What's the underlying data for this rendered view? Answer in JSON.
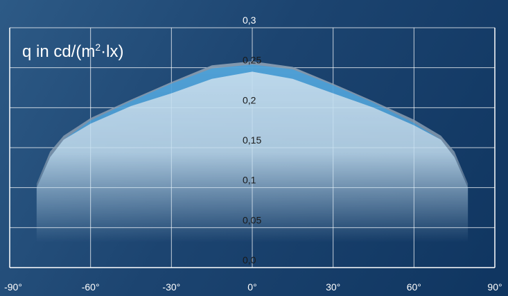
{
  "chart_data": {
    "type": "area",
    "title": "",
    "ylabel": "q in cd/(m²·lx)",
    "ylabel_parts": {
      "prefix": "q in cd/(m",
      "sup": "2",
      "suffix": "·lx)"
    },
    "xlabel": "",
    "xlim": [
      -90,
      90
    ],
    "ylim": [
      0,
      0.3
    ],
    "grid": true,
    "x_ticks": [
      "-90°",
      "-60°",
      "-30°",
      "0°",
      "30°",
      "60°",
      "90°"
    ],
    "y_ticks": [
      "0,0",
      "0,05",
      "0,1",
      "0,15",
      "0,2",
      "0,25",
      "0,3"
    ],
    "series": [
      {
        "color": "#8a9eb2",
        "x": [
          -80,
          -75,
          -70,
          -60,
          -45,
          -30,
          -15,
          0,
          15,
          30,
          45,
          60,
          70,
          75,
          80
        ],
        "y": [
          0.105,
          0.145,
          0.165,
          0.187,
          0.21,
          0.232,
          0.253,
          0.258,
          0.251,
          0.23,
          0.208,
          0.185,
          0.165,
          0.145,
          0.105
        ]
      },
      {
        "color": "#4ea3db",
        "x": [
          -80,
          -75,
          -70,
          -60,
          -45,
          -30,
          -15,
          0,
          15,
          30,
          45,
          60,
          70,
          75,
          80
        ],
        "y": [
          0.1,
          0.138,
          0.16,
          0.184,
          0.208,
          0.23,
          0.249,
          0.254,
          0.248,
          0.228,
          0.206,
          0.181,
          0.16,
          0.138,
          0.1
        ]
      },
      {
        "color": "#c3def0",
        "x": [
          -80,
          -75,
          -70,
          -60,
          -45,
          -30,
          -15,
          0,
          15,
          30,
          45,
          60,
          70,
          75,
          80
        ],
        "y": [
          0.1,
          0.138,
          0.16,
          0.18,
          0.202,
          0.218,
          0.236,
          0.245,
          0.236,
          0.218,
          0.2,
          0.178,
          0.16,
          0.138,
          0.1
        ]
      }
    ]
  }
}
